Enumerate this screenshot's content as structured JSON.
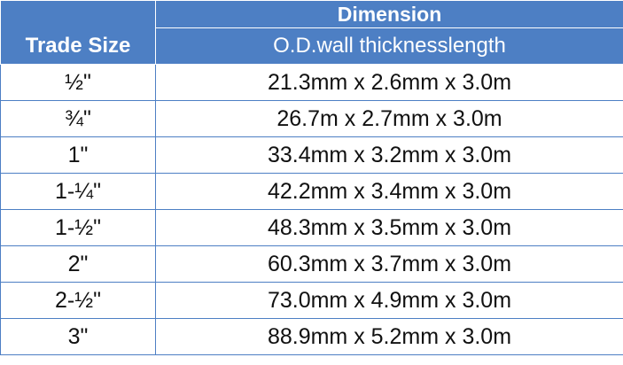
{
  "header": {
    "trade_size": "Trade Size",
    "dimension": "Dimension",
    "subheader": "O.D.wall thicknesslength"
  },
  "rows": [
    {
      "size": "½\"",
      "dimension": "21.3mm x 2.6mm x 3.0m"
    },
    {
      "size": "¾\"",
      "dimension": "26.7m x 2.7mm x 3.0m"
    },
    {
      "size": "1\"",
      "dimension": "33.4mm x 3.2mm x 3.0m"
    },
    {
      "size": "1-¼\"",
      "dimension": "42.2mm x 3.4mm x 3.0m"
    },
    {
      "size": "1-½\"",
      "dimension": "48.3mm x 3.5mm x 3.0m"
    },
    {
      "size": "2\"",
      "dimension": "60.3mm x 3.7mm x 3.0m"
    },
    {
      "size": "2-½\"",
      "dimension": "73.0mm x 4.9mm x 3.0m"
    },
    {
      "size": "3\"",
      "dimension": "88.9mm x 5.2mm x 3.0m"
    }
  ],
  "colors": {
    "header_bg": "#4d7fc4",
    "header_text": "#ffffff",
    "border": "#4d7fc4"
  }
}
